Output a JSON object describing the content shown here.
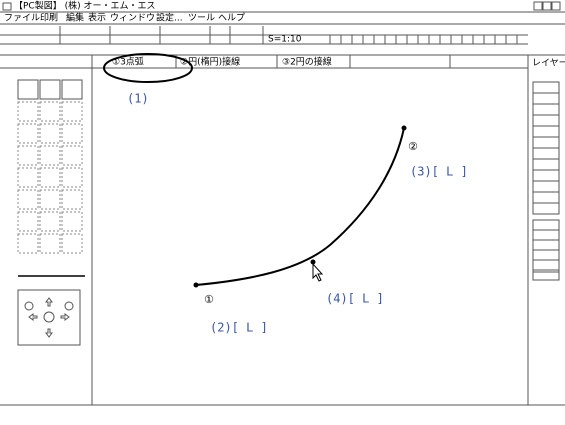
{
  "title_bar": {
    "title": "【PC製図】 (株) オー・エム・エス"
  },
  "menu": [
    "ファイル",
    "印刷",
    "編集",
    "表示",
    "ウィンドウ",
    "設定...",
    "ツール",
    "ヘルプ"
  ],
  "toolbar": {
    "scale": "S=1:10"
  },
  "tabs": [
    "①3点弧",
    "②円(楕円)接線",
    "③2円の接線"
  ],
  "layer_panel": {
    "title": "レイヤー"
  },
  "canvas": {
    "annotations": [
      "(1)",
      "(2)[ L ]",
      "(3)[ L ]",
      "(4)[ L ]"
    ],
    "point_labels": [
      "①",
      "②"
    ]
  }
}
